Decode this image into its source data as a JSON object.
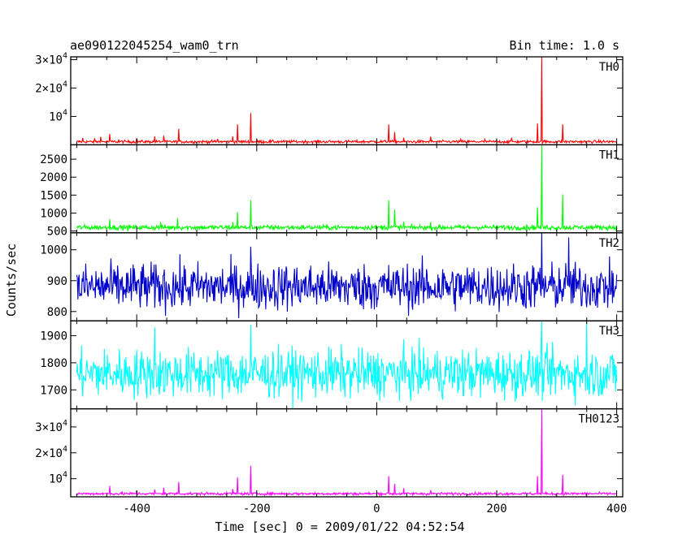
{
  "header": {
    "object_name": "ae090122045254_wam0_trn",
    "bin_time": "Bin time: 1.0 s"
  },
  "chart_data": {
    "type": "line",
    "title": "ae090122045254_wam0_trn",
    "xlabel": "Time [sec] 0 = 2009/01/22 04:52:54",
    "ylabel": "Counts/sec",
    "xlim": [
      -510,
      410
    ],
    "x_ticks": [
      -400,
      -200,
      0,
      200,
      400
    ],
    "x_tick_labels": [
      "-400",
      "-200",
      "0",
      "200",
      "400"
    ],
    "panels": [
      {
        "name": "TH0",
        "color": "#ff0000",
        "ylim": [
          0,
          31000
        ],
        "y_ticks": [
          10000,
          20000,
          30000
        ],
        "y_tick_labels": [
          [
            "",
            "10",
            "4"
          ],
          [
            "2×",
            "10",
            "4"
          ],
          [
            "3×",
            "10",
            "4"
          ]
        ],
        "baseline": 1100,
        "noise": 250,
        "spikes": [
          [
            -490,
            2400
          ],
          [
            -470,
            2100
          ],
          [
            -460,
            2800
          ],
          [
            -445,
            3800
          ],
          [
            -430,
            1900
          ],
          [
            -400,
            2300
          ],
          [
            -370,
            3000
          ],
          [
            -355,
            3200
          ],
          [
            -330,
            5600
          ],
          [
            -265,
            2100
          ],
          [
            -240,
            3000
          ],
          [
            -232,
            7200
          ],
          [
            -210,
            11200
          ],
          [
            20,
            7200
          ],
          [
            30,
            4500
          ],
          [
            45,
            2500
          ],
          [
            90,
            2900
          ],
          [
            140,
            2000
          ],
          [
            180,
            2000
          ],
          [
            225,
            2500
          ],
          [
            268,
            7500
          ],
          [
            275,
            31000
          ],
          [
            310,
            7200
          ]
        ]
      },
      {
        "name": "TH1",
        "color": "#00ff00",
        "ylim": [
          450,
          2900
        ],
        "y_ticks": [
          500,
          1000,
          1500,
          2000,
          2500
        ],
        "y_tick_labels": [
          "500",
          "1000",
          "1500",
          "2000",
          "2500"
        ],
        "baseline": 600,
        "noise": 35,
        "spikes": [
          [
            -445,
            830
          ],
          [
            -360,
            750
          ],
          [
            -332,
            860
          ],
          [
            -240,
            750
          ],
          [
            -232,
            1020
          ],
          [
            -210,
            1360
          ],
          [
            20,
            1360
          ],
          [
            30,
            1100
          ],
          [
            45,
            760
          ],
          [
            90,
            750
          ],
          [
            268,
            1160
          ],
          [
            275,
            2900
          ],
          [
            310,
            1520
          ]
        ]
      },
      {
        "name": "TH2",
        "color": "#0000cc",
        "ylim": [
          770,
          1055
        ],
        "y_ticks": [
          800,
          900,
          1000
        ],
        "y_tick_labels": [
          "800",
          "900",
          "1000"
        ],
        "baseline": 880,
        "noise": 38,
        "spikes": [
          [
            -210,
            1010
          ],
          [
            275,
            1055
          ],
          [
            320,
            1040
          ]
        ]
      },
      {
        "name": "TH3",
        "color": "#00ffff",
        "ylim": [
          1630,
          1955
        ],
        "y_ticks": [
          1700,
          1800,
          1900
        ],
        "y_tick_labels": [
          "1700",
          "1800",
          "1900"
        ],
        "baseline": 1760,
        "noise": 45,
        "spikes": [
          [
            -370,
            1930
          ],
          [
            -210,
            1940
          ],
          [
            275,
            1955
          ],
          [
            350,
            1950
          ]
        ]
      },
      {
        "name": "TH0123",
        "color": "#ff00ff",
        "ylim": [
          3000,
          37000
        ],
        "y_ticks": [
          10000,
          20000,
          30000
        ],
        "y_tick_labels": [
          [
            "",
            "10",
            "4"
          ],
          [
            "2×",
            "10",
            "4"
          ],
          [
            "3×",
            "10",
            "4"
          ]
        ],
        "baseline": 4200,
        "noise": 260,
        "spikes": [
          [
            -445,
            7200
          ],
          [
            -400,
            5500
          ],
          [
            -370,
            5800
          ],
          [
            -355,
            6500
          ],
          [
            -330,
            8700
          ],
          [
            -240,
            6000
          ],
          [
            -232,
            10500
          ],
          [
            -210,
            15000
          ],
          [
            20,
            11000
          ],
          [
            30,
            8000
          ],
          [
            45,
            6300
          ],
          [
            90,
            5500
          ],
          [
            268,
            11000
          ],
          [
            275,
            37000
          ],
          [
            310,
            11500
          ]
        ]
      }
    ]
  }
}
